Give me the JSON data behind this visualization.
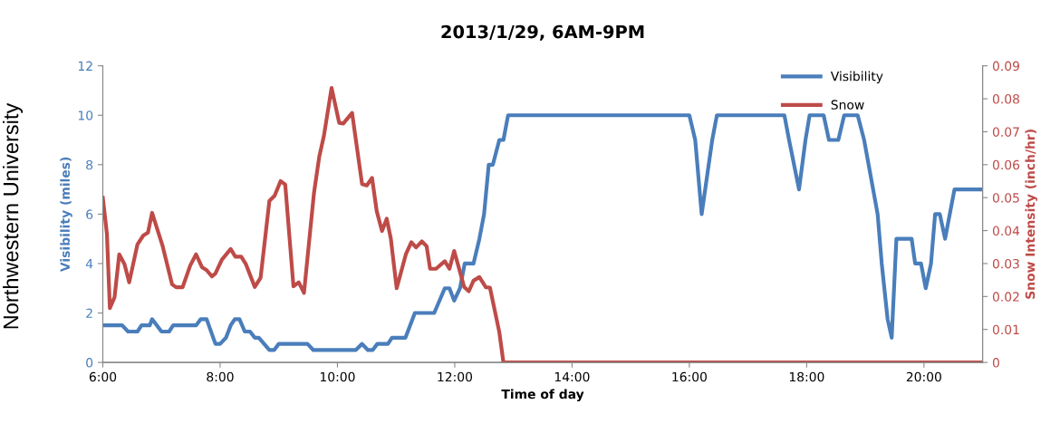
{
  "chart_data": {
    "type": "line",
    "title": "2013/1/29, 6AM-9PM",
    "xlabel": "Time of day",
    "ylabel": "Visibility (miles)",
    "y2label": "Snow Intensity (inch/hr)",
    "annotations": [
      "Northwestern University"
    ],
    "xlim": [
      6,
      21
    ],
    "xticks": [
      {
        "value": 6,
        "label": "6:00"
      },
      {
        "value": 8,
        "label": "8:00"
      },
      {
        "value": 10,
        "label": "10:00"
      },
      {
        "value": 12,
        "label": "12:00"
      },
      {
        "value": 14,
        "label": "14:00"
      },
      {
        "value": 16,
        "label": "16:00"
      },
      {
        "value": 18,
        "label": "18:00"
      },
      {
        "value": 20,
        "label": "20:00"
      }
    ],
    "ylim": [
      0,
      12
    ],
    "yticks": [
      0,
      2,
      4,
      6,
      8,
      10,
      12
    ],
    "y2lim": [
      0,
      0.09
    ],
    "y2ticks": [
      0,
      0.01,
      0.02,
      0.03,
      0.04,
      0.05,
      0.06,
      0.07,
      0.08,
      0.09
    ],
    "grid": false,
    "legend": "top right",
    "marker": "none",
    "line_style": "solid",
    "series": [
      {
        "name": "Visibility",
        "color": "#4a7ebb",
        "x": [
          6.0,
          6.33,
          6.43,
          6.59,
          6.66,
          6.8,
          6.84,
          7.0,
          7.13,
          7.2,
          7.59,
          7.67,
          7.77,
          7.92,
          8.0,
          8.1,
          8.18,
          8.25,
          8.33,
          8.42,
          8.51,
          8.59,
          8.66,
          8.84,
          8.92,
          9.0,
          9.49,
          9.59,
          10.31,
          10.42,
          10.52,
          10.6,
          10.68,
          10.86,
          10.93,
          11.16,
          11.32,
          11.65,
          11.83,
          11.91,
          11.99,
          12.09,
          12.17,
          12.32,
          12.42,
          12.5,
          12.58,
          12.65,
          12.76,
          12.83,
          12.91,
          16.0,
          16.1,
          16.21,
          16.39,
          16.47,
          17.62,
          17.7,
          17.87,
          17.98,
          18.05,
          18.29,
          18.38,
          18.54,
          18.64,
          18.87,
          18.98,
          19.21,
          19.28,
          19.38,
          19.45,
          19.53,
          19.79,
          19.85,
          19.95,
          20.03,
          20.12,
          20.19,
          20.27,
          20.36,
          20.52,
          21.0
        ],
        "values": [
          1.5,
          1.5,
          1.25,
          1.25,
          1.5,
          1.5,
          1.75,
          1.25,
          1.25,
          1.5,
          1.5,
          1.75,
          1.75,
          0.75,
          0.75,
          1.0,
          1.5,
          1.75,
          1.75,
          1.25,
          1.25,
          1.0,
          1.0,
          0.5,
          0.5,
          0.75,
          0.75,
          0.5,
          0.5,
          0.75,
          0.5,
          0.5,
          0.75,
          0.75,
          1.0,
          1.0,
          2.0,
          2.0,
          3.0,
          3.0,
          2.5,
          3.0,
          4.0,
          4.0,
          5.0,
          6.0,
          8.0,
          8.0,
          9.0,
          9.0,
          10.0,
          10.0,
          9.0,
          6.0,
          9.0,
          10.0,
          10.0,
          9.0,
          7.0,
          9.0,
          10.0,
          10.0,
          9.0,
          9.0,
          10.0,
          10.0,
          9.0,
          6.0,
          4.0,
          1.75,
          1.0,
          5.0,
          5.0,
          4.0,
          4.0,
          3.0,
          4.0,
          6.0,
          6.0,
          5.0,
          7.0,
          7.0
        ]
      },
      {
        "name": "Snow",
        "color": "#be4b48",
        "axis": "y2",
        "x": [
          6.0,
          6.07,
          6.12,
          6.2,
          6.28,
          6.37,
          6.45,
          6.59,
          6.69,
          6.77,
          6.84,
          7.02,
          7.18,
          7.25,
          7.36,
          7.49,
          7.59,
          7.69,
          7.77,
          7.86,
          7.92,
          8.03,
          8.18,
          8.26,
          8.36,
          8.44,
          8.59,
          8.69,
          8.84,
          8.93,
          9.03,
          9.11,
          9.25,
          9.34,
          9.43,
          9.6,
          9.69,
          9.77,
          9.9,
          10.03,
          10.1,
          10.25,
          10.42,
          10.5,
          10.59,
          10.67,
          10.76,
          10.84,
          10.91,
          11.01,
          11.17,
          11.26,
          11.34,
          11.44,
          11.52,
          11.58,
          11.68,
          11.83,
          11.91,
          11.99,
          12.06,
          12.16,
          12.24,
          12.32,
          12.42,
          12.53,
          12.6,
          12.76,
          12.83,
          21.0
        ],
        "values": [
          0.05,
          0.039,
          0.0165,
          0.0198,
          0.0328,
          0.0298,
          0.0243,
          0.0358,
          0.0385,
          0.0394,
          0.0454,
          0.0353,
          0.0237,
          0.0228,
          0.0228,
          0.0294,
          0.0328,
          0.0289,
          0.028,
          0.0261,
          0.027,
          0.0312,
          0.0344,
          0.0321,
          0.0321,
          0.0298,
          0.0229,
          0.0257,
          0.049,
          0.0506,
          0.055,
          0.054,
          0.0231,
          0.0243,
          0.0211,
          0.0514,
          0.0624,
          0.0688,
          0.0833,
          0.0727,
          0.0725,
          0.0757,
          0.0541,
          0.0537,
          0.056,
          0.0459,
          0.0399,
          0.0436,
          0.0376,
          0.0225,
          0.033,
          0.0365,
          0.0349,
          0.0367,
          0.0353,
          0.0284,
          0.0284,
          0.0307,
          0.0284,
          0.0338,
          0.0294,
          0.0229,
          0.0216,
          0.0248,
          0.0259,
          0.0228,
          0.0227,
          0.0092,
          0.0,
          0.0
        ]
      }
    ]
  }
}
